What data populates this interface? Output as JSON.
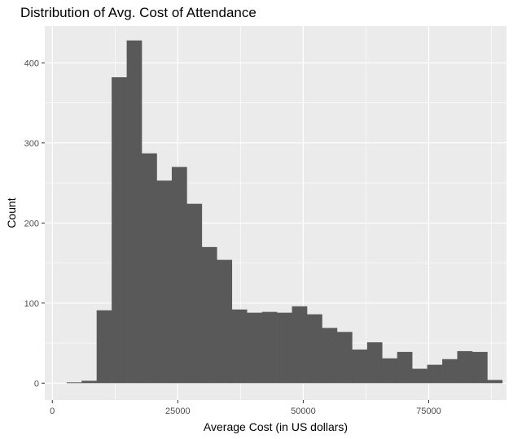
{
  "chart_data": {
    "type": "bar",
    "title": "Distribution of Avg. Cost of Attendance",
    "xlabel": "Average Cost (in US dollars)",
    "ylabel": "Count",
    "bin_width": 2994,
    "first_bin_left": 2844,
    "values": [
      1,
      3,
      91,
      382,
      428,
      287,
      253,
      270,
      224,
      170,
      154,
      92,
      88,
      89,
      88,
      96,
      86,
      69,
      64,
      42,
      51,
      31,
      39,
      18,
      23,
      30,
      40,
      39,
      4
    ],
    "xlim": [
      -1500,
      90500
    ],
    "ylim": [
      -21,
      446
    ],
    "x_ticks": [
      0,
      25000,
      50000,
      75000
    ],
    "x_tick_labels": [
      "0",
      "25000",
      "50000",
      "75000"
    ],
    "y_ticks": [
      0,
      100,
      200,
      300,
      400
    ],
    "y_tick_labels": [
      "0",
      "100",
      "200",
      "300",
      "400"
    ],
    "grid": true,
    "panel_color": "#ebebeb",
    "bar_color": "#595959",
    "gridline_color": "#ffffff"
  }
}
